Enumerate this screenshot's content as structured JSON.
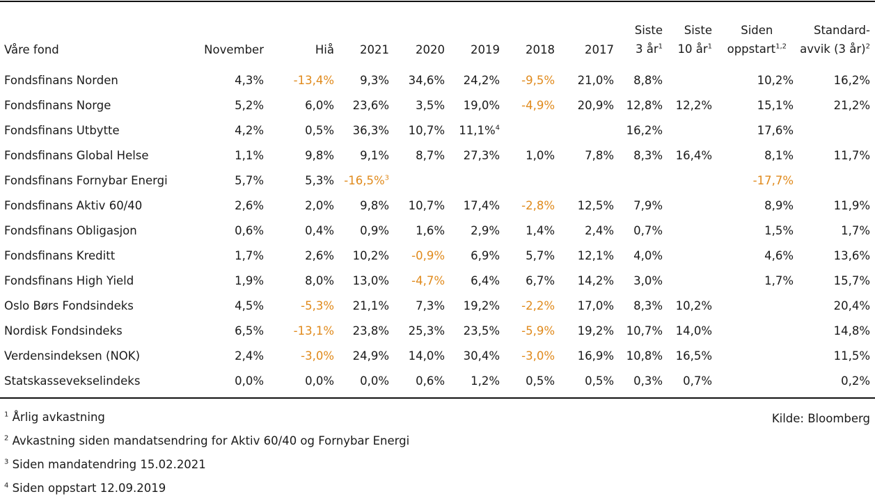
{
  "header": {
    "name": "Våre fond",
    "november": "November",
    "hia": "Hiå",
    "y2021": "2021",
    "y2020": "2020",
    "y2019": "2019",
    "y2018": "2018",
    "y2017": "2017",
    "siste3_line1": "Siste",
    "siste3_line2": "3 år",
    "siste3_sup": "1",
    "siste10_line1": "Siste",
    "siste10_line2": "10 år",
    "siste10_sup": "1",
    "siden_line1": "Siden",
    "siden_line2": "oppstart",
    "siden_sup": "1,2",
    "std_line1": "Standard-",
    "std_line2": "avvik (3 år)",
    "std_sup": "2"
  },
  "accent_color": "#e08a1c",
  "rows": [
    {
      "name": "Fondsfinans Norden",
      "cells": [
        {
          "v": "4,3%"
        },
        {
          "v": "-13,4%",
          "neg": true
        },
        {
          "v": "9,3%"
        },
        {
          "v": "34,6%"
        },
        {
          "v": "24,2%"
        },
        {
          "v": "-9,5%",
          "neg": true
        },
        {
          "v": "21,0%"
        },
        {
          "v": "8,8%"
        },
        {
          "v": ""
        },
        {
          "v": "10,2%"
        },
        {
          "v": "16,2%"
        }
      ]
    },
    {
      "name": "Fondsfinans Norge",
      "cells": [
        {
          "v": "5,2%"
        },
        {
          "v": "6,0%"
        },
        {
          "v": "23,6%"
        },
        {
          "v": "3,5%"
        },
        {
          "v": "19,0%"
        },
        {
          "v": "-4,9%",
          "neg": true
        },
        {
          "v": "20,9%"
        },
        {
          "v": "12,8%"
        },
        {
          "v": "12,2%"
        },
        {
          "v": "15,1%"
        },
        {
          "v": "21,2%"
        }
      ]
    },
    {
      "name": "Fondsfinans Utbytte",
      "cells": [
        {
          "v": "4,2%"
        },
        {
          "v": "0,5%"
        },
        {
          "v": "36,3%"
        },
        {
          "v": "10,7%"
        },
        {
          "v": "11,1%",
          "sup": "4"
        },
        {
          "v": ""
        },
        {
          "v": ""
        },
        {
          "v": "16,2%"
        },
        {
          "v": ""
        },
        {
          "v": "17,6%"
        },
        {
          "v": ""
        }
      ]
    },
    {
      "name": "Fondsfinans Global Helse",
      "cells": [
        {
          "v": "1,1%"
        },
        {
          "v": "9,8%"
        },
        {
          "v": "9,1%"
        },
        {
          "v": "8,7%"
        },
        {
          "v": "27,3%"
        },
        {
          "v": "1,0%"
        },
        {
          "v": "7,8%"
        },
        {
          "v": "8,3%"
        },
        {
          "v": "16,4%"
        },
        {
          "v": "8,1%"
        },
        {
          "v": "11,7%"
        }
      ]
    },
    {
      "name": "Fondsfinans Fornybar Energi",
      "cells": [
        {
          "v": "5,7%"
        },
        {
          "v": "5,3%"
        },
        {
          "v": "-16,5%",
          "neg": true,
          "sup": "3"
        },
        {
          "v": ""
        },
        {
          "v": ""
        },
        {
          "v": ""
        },
        {
          "v": ""
        },
        {
          "v": ""
        },
        {
          "v": ""
        },
        {
          "v": "-17,7%",
          "neg": true
        },
        {
          "v": ""
        }
      ]
    },
    {
      "name": "Fondsfinans Aktiv 60/40",
      "cells": [
        {
          "v": "2,6%"
        },
        {
          "v": "2,0%"
        },
        {
          "v": "9,8%"
        },
        {
          "v": "10,7%"
        },
        {
          "v": "17,4%"
        },
        {
          "v": "-2,8%",
          "neg": true
        },
        {
          "v": "12,5%"
        },
        {
          "v": "7,9%"
        },
        {
          "v": ""
        },
        {
          "v": "8,9%"
        },
        {
          "v": "11,9%"
        }
      ]
    },
    {
      "name": "Fondsfinans Obligasjon",
      "cells": [
        {
          "v": "0,6%"
        },
        {
          "v": "0,4%"
        },
        {
          "v": "0,9%"
        },
        {
          "v": "1,6%"
        },
        {
          "v": "2,9%"
        },
        {
          "v": "1,4%"
        },
        {
          "v": "2,4%"
        },
        {
          "v": "0,7%"
        },
        {
          "v": ""
        },
        {
          "v": "1,5%"
        },
        {
          "v": "1,7%"
        }
      ]
    },
    {
      "name": "Fondsfinans Kreditt",
      "cells": [
        {
          "v": "1,7%"
        },
        {
          "v": "2,6%"
        },
        {
          "v": "10,2%"
        },
        {
          "v": "-0,9%",
          "neg": true
        },
        {
          "v": "6,9%"
        },
        {
          "v": "5,7%"
        },
        {
          "v": "12,1%"
        },
        {
          "v": "4,0%"
        },
        {
          "v": ""
        },
        {
          "v": "4,6%"
        },
        {
          "v": "13,6%"
        }
      ]
    },
    {
      "name": "Fondsfinans High Yield",
      "cells": [
        {
          "v": "1,9%"
        },
        {
          "v": "8,0%"
        },
        {
          "v": "13,0%"
        },
        {
          "v": "-4,7%",
          "neg": true
        },
        {
          "v": "6,4%"
        },
        {
          "v": "6,7%"
        },
        {
          "v": "14,2%"
        },
        {
          "v": "3,0%"
        },
        {
          "v": ""
        },
        {
          "v": "1,7%"
        },
        {
          "v": "15,7%"
        }
      ]
    },
    {
      "name": "Oslo Børs Fondsindeks",
      "cells": [
        {
          "v": "4,5%"
        },
        {
          "v": "-5,3%",
          "neg": true
        },
        {
          "v": "21,1%"
        },
        {
          "v": "7,3%"
        },
        {
          "v": "19,2%"
        },
        {
          "v": "-2,2%",
          "neg": true
        },
        {
          "v": "17,0%"
        },
        {
          "v": "8,3%"
        },
        {
          "v": "10,2%"
        },
        {
          "v": ""
        },
        {
          "v": "20,4%"
        }
      ]
    },
    {
      "name": "Nordisk Fondsindeks",
      "cells": [
        {
          "v": "6,5%"
        },
        {
          "v": "-13,1%",
          "neg": true
        },
        {
          "v": "23,8%"
        },
        {
          "v": "25,3%"
        },
        {
          "v": "23,5%"
        },
        {
          "v": "-5,9%",
          "neg": true
        },
        {
          "v": "19,2%"
        },
        {
          "v": "10,7%"
        },
        {
          "v": "14,0%"
        },
        {
          "v": ""
        },
        {
          "v": "14,8%"
        }
      ]
    },
    {
      "name": "Verdensindeksen (NOK)",
      "cells": [
        {
          "v": "2,4%"
        },
        {
          "v": "-3,0%",
          "neg": true
        },
        {
          "v": "24,9%"
        },
        {
          "v": "14,0%"
        },
        {
          "v": "30,4%"
        },
        {
          "v": "-3,0%",
          "neg": true
        },
        {
          "v": "16,9%"
        },
        {
          "v": "10,8%"
        },
        {
          "v": "16,5%"
        },
        {
          "v": ""
        },
        {
          "v": "11,5%"
        }
      ]
    },
    {
      "name": "Statskassevekselindeks",
      "cells": [
        {
          "v": "0,0%"
        },
        {
          "v": "0,0%"
        },
        {
          "v": "0,0%"
        },
        {
          "v": "0,6%"
        },
        {
          "v": "1,2%"
        },
        {
          "v": "0,5%"
        },
        {
          "v": "0,5%"
        },
        {
          "v": "0,3%"
        },
        {
          "v": "0,7%"
        },
        {
          "v": ""
        },
        {
          "v": "0,2%"
        }
      ]
    }
  ],
  "footnotes": [
    {
      "num": "1",
      "text": "Årlig avkastning"
    },
    {
      "num": "2",
      "text": "Avkastning siden mandatsendring for Aktiv 60/40 og Fornybar Energi"
    },
    {
      "num": "3",
      "text": "Siden mandatendring 15.02.2021"
    },
    {
      "num": "4",
      "text": "Siden oppstart 12.09.2019"
    }
  ],
  "source": "Kilde: Bloomberg"
}
